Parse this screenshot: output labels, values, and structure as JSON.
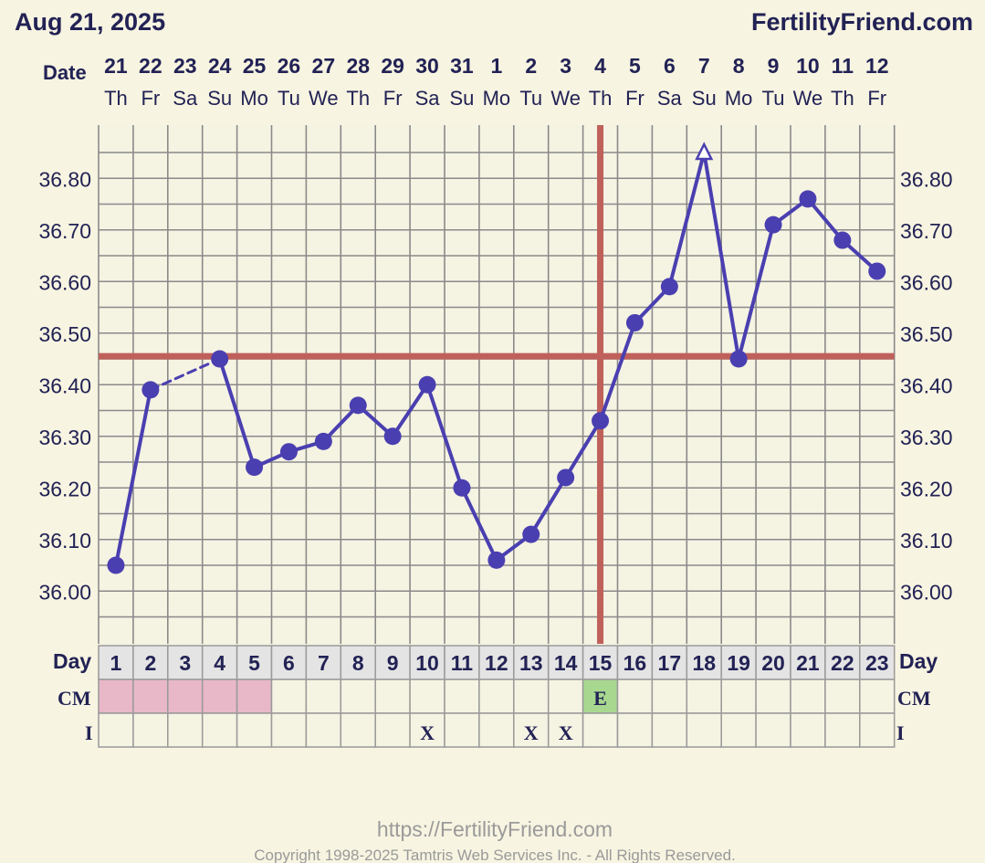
{
  "header": {
    "date": "Aug 21, 2025",
    "brand": "FertilityFriend.com"
  },
  "labels": {
    "date": "Date",
    "day": "Day",
    "cm": "CM",
    "intercourse": "I"
  },
  "footer": {
    "url": "https://FertilityFriend.com",
    "copyright": "Copyright 1998-2025 Tamtris Web Services Inc. - All Rights Reserved."
  },
  "colors": {
    "background": "#f7f4e1",
    "grid_bg": "#f5f3e2",
    "grid_line": "#8a8a8a",
    "temp_line": "#4a3fb0",
    "coverline": "#c0605a",
    "period": "#e8b8c8",
    "egg_white": "#a8d890",
    "text": "#222255"
  },
  "chart_data": {
    "type": "line",
    "title": "",
    "xlabel": "Day",
    "ylabel": "",
    "ylim": [
      35.93,
      36.93
    ],
    "y_ticks": [
      "36.00",
      "36.10",
      "36.20",
      "36.30",
      "36.40",
      "36.50",
      "36.60",
      "36.70",
      "36.80"
    ],
    "dates": [
      "21",
      "22",
      "23",
      "24",
      "25",
      "26",
      "27",
      "28",
      "29",
      "30",
      "31",
      "1",
      "2",
      "3",
      "4",
      "5",
      "6",
      "7",
      "8",
      "9",
      "10",
      "11",
      "12"
    ],
    "weekdays": [
      "Th",
      "Fr",
      "Sa",
      "Su",
      "Mo",
      "Tu",
      "We",
      "Th",
      "Fr",
      "Sa",
      "Su",
      "Mo",
      "Tu",
      "We",
      "Th",
      "Fr",
      "Sa",
      "Su",
      "Mo",
      "Tu",
      "We",
      "Th",
      "Fr"
    ],
    "cycle_days": [
      "1",
      "2",
      "3",
      "4",
      "5",
      "6",
      "7",
      "8",
      "9",
      "10",
      "11",
      "12",
      "13",
      "14",
      "15",
      "16",
      "17",
      "18",
      "19",
      "20",
      "21",
      "22",
      "23"
    ],
    "temperatures": [
      36.05,
      36.39,
      null,
      36.45,
      36.24,
      36.27,
      36.29,
      36.36,
      36.3,
      36.4,
      36.2,
      36.06,
      36.11,
      36.22,
      36.33,
      36.52,
      36.59,
      36.85,
      36.45,
      36.71,
      36.76,
      36.68,
      36.62
    ],
    "discarded_temp_days": [
      "18"
    ],
    "dashed_gap_between_days": [
      "2",
      "4"
    ],
    "coverline": 36.455,
    "ovulation_day": "15",
    "period_days": [
      "1",
      "2",
      "3",
      "4",
      "5"
    ],
    "cm": [
      {
        "day": "15",
        "value": "E"
      }
    ],
    "intercourse": [
      {
        "day": "10",
        "value": "X"
      },
      {
        "day": "13",
        "value": "X"
      },
      {
        "day": "14",
        "value": "X"
      }
    ],
    "grid": true
  }
}
